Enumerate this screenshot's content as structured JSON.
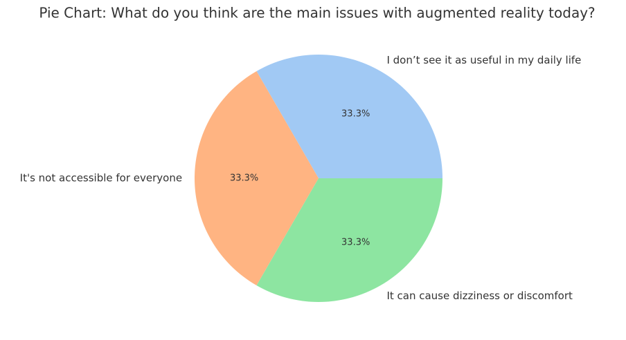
{
  "chart_data": {
    "type": "pie",
    "title": "Pie Chart: What do you think are the main issues with augmented reality today?",
    "categories": [
      "I don’t see it as useful in my daily life",
      "It's not accessible for everyone",
      "It can cause dizziness or discomfort"
    ],
    "values": [
      33.3,
      33.3,
      33.3
    ],
    "value_labels": [
      "33.3%",
      "33.3%",
      "33.3%"
    ],
    "colors": [
      "#a1c9f4",
      "#ffb482",
      "#8de5a1"
    ]
  }
}
